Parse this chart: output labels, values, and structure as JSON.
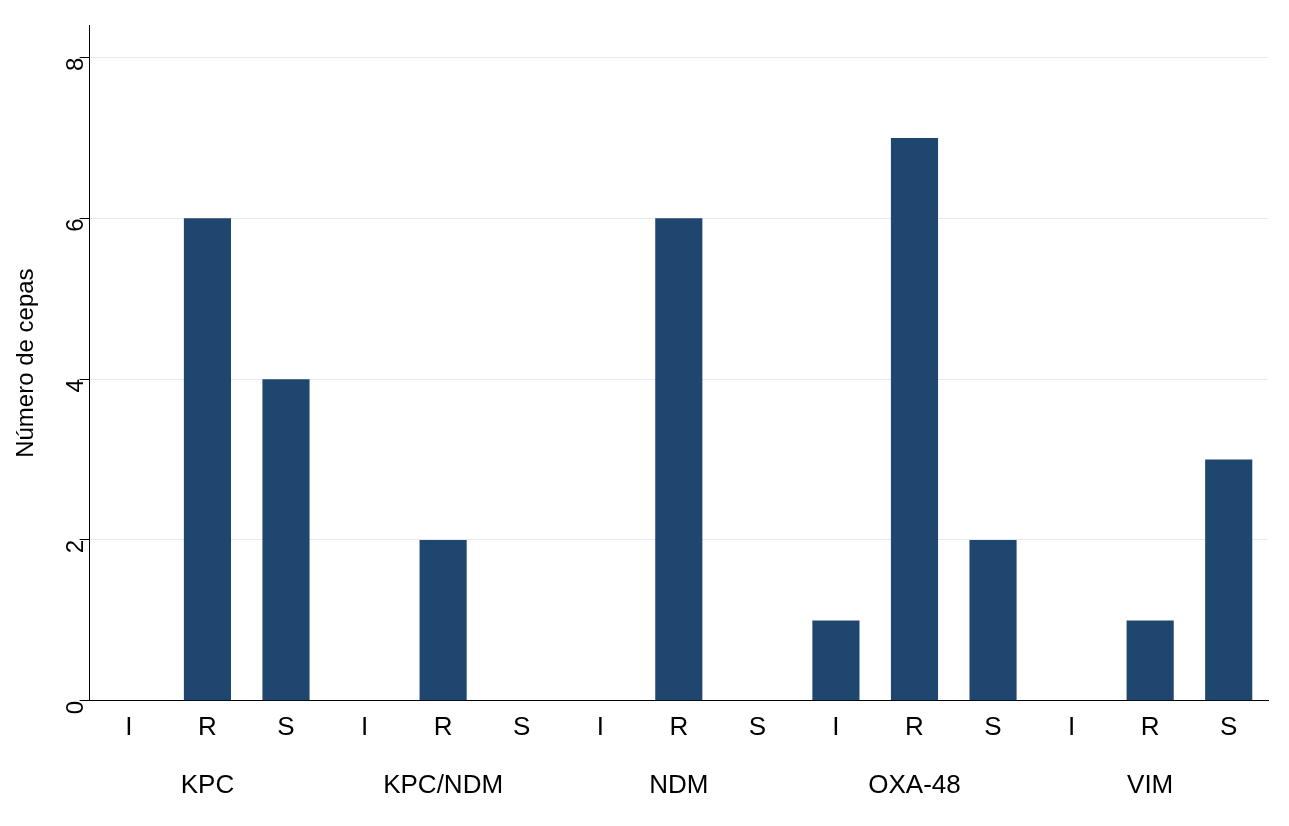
{
  "chart_data": {
    "type": "bar",
    "ylabel": "Número de cepas",
    "categories": [
      "I",
      "R",
      "S",
      "I",
      "R",
      "S",
      "I",
      "R",
      "S",
      "I",
      "R",
      "S",
      "I",
      "R",
      "S"
    ],
    "values": [
      0,
      6,
      4,
      0,
      2,
      0,
      0,
      6,
      0,
      1,
      7,
      2,
      0,
      1,
      3
    ],
    "color": "#1f466f",
    "ylim": [
      0,
      8.4
    ],
    "yticks": [
      0,
      2,
      4,
      6,
      8
    ],
    "grid": "y",
    "legend": false,
    "annotations": [
      "KPC",
      "KPC/NDM",
      "NDM",
      "OXA-48",
      "VIM"
    ]
  }
}
